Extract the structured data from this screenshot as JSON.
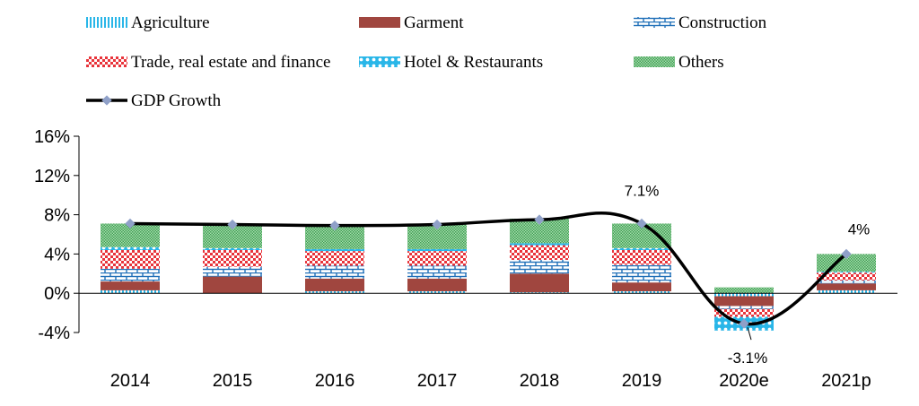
{
  "chart_data": {
    "type": "bar",
    "subtype": "stacked-bar-with-line",
    "categories": [
      "2014",
      "2015",
      "2016",
      "2017",
      "2018",
      "2019",
      "2020e",
      "2021p"
    ],
    "series": [
      {
        "name": "Agriculture",
        "kind": "bar",
        "pattern": "vertical-stripes",
        "color": "#29b6e8",
        "values": [
          0.3,
          0.0,
          0.2,
          0.2,
          0.1,
          0.2,
          -0.3,
          0.3
        ]
      },
      {
        "name": "Garment",
        "kind": "bar",
        "pattern": "solid",
        "color": "#a0463f",
        "values": [
          0.9,
          1.7,
          1.3,
          1.3,
          1.9,
          0.9,
          -1.0,
          0.7
        ]
      },
      {
        "name": "Construction",
        "kind": "bar",
        "pattern": "brick",
        "color": "#1f6fb8",
        "values": [
          1.3,
          1.0,
          1.3,
          1.3,
          1.4,
          1.8,
          -0.3,
          0.3
        ]
      },
      {
        "name": "Trade, real estate and finance",
        "kind": "bar",
        "pattern": "checker",
        "color": "#e8333a",
        "values": [
          1.9,
          1.7,
          1.5,
          1.5,
          1.5,
          1.5,
          -0.8,
          0.8
        ]
      },
      {
        "name": "Hotel & Restaurants",
        "kind": "bar",
        "pattern": "dots",
        "color": "#29b6e8",
        "values": [
          0.3,
          0.2,
          0.2,
          0.2,
          0.2,
          0.2,
          -1.4,
          0.1
        ]
      },
      {
        "name": "Others",
        "kind": "bar",
        "pattern": "fine-checker",
        "color": "#4caf50",
        "values": [
          2.4,
          2.3,
          2.4,
          2.5,
          2.5,
          2.5,
          0.6,
          1.8
        ]
      },
      {
        "name": "GDP Growth",
        "kind": "line",
        "color": "#000000",
        "marker_color": "#8fa0c8",
        "values": [
          7.1,
          7.0,
          6.9,
          7.0,
          7.5,
          7.1,
          -3.1,
          4.0
        ]
      }
    ],
    "data_labels": [
      {
        "category": "2019",
        "text": "7.1%"
      },
      {
        "category": "2020e",
        "text": "-3.1%"
      },
      {
        "category": "2021p",
        "text": "4%"
      }
    ],
    "yticks": [
      "16%",
      "12%",
      "8%",
      "4%",
      "0%",
      "-4%"
    ],
    "ylim": [
      -4,
      16
    ],
    "legend_position": "top",
    "grid": false,
    "title": "",
    "xlabel": "",
    "ylabel": ""
  }
}
